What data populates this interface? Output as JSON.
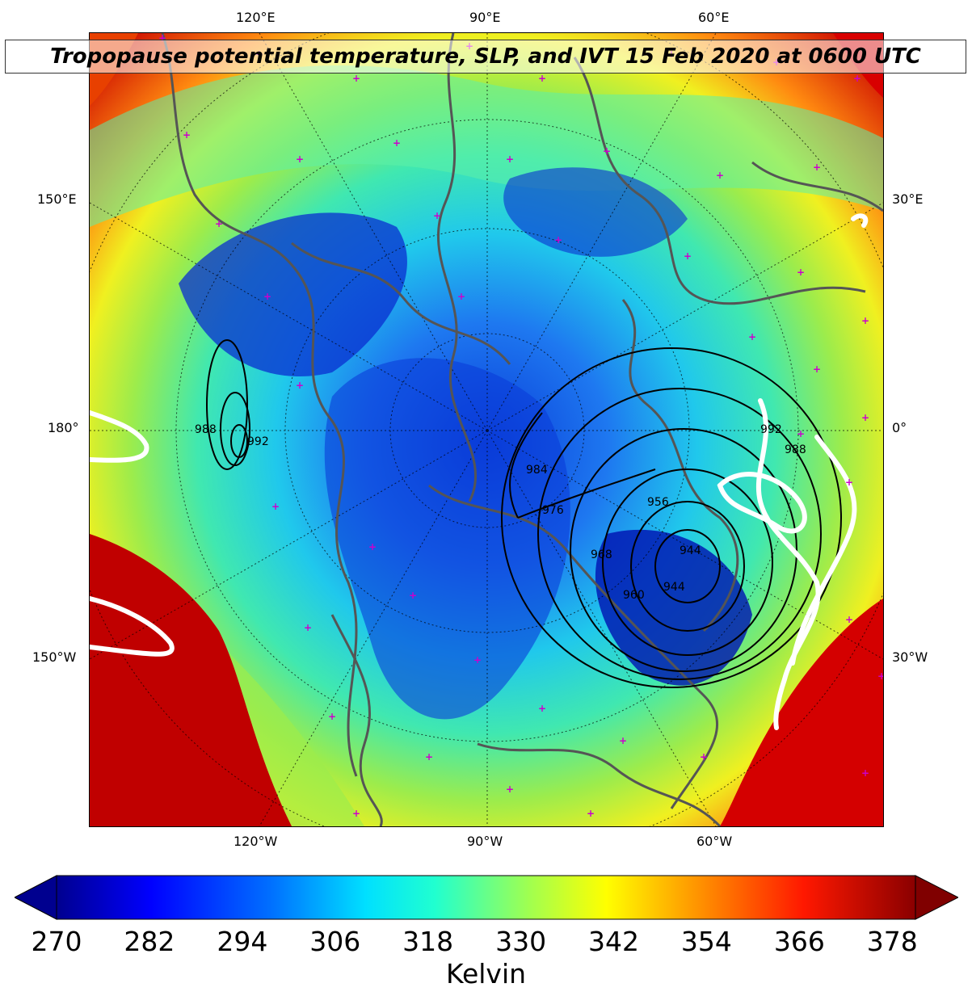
{
  "title": "Tropopause potential temperature, SLP, and IVT 15 Feb 2020 at 0600 UTC",
  "map": {
    "projection": "north-polar-stereographic",
    "fill_variable": "Tropopause potential temperature",
    "contour_variable": "SLP",
    "outline_variable": "IVT",
    "lon_labels_top": [
      "120°E",
      "90°E",
      "60°E"
    ],
    "lon_labels_bottom": [
      "120°W",
      "90°W",
      "60°W"
    ],
    "lat_labels_left": [
      "150°E",
      "180°",
      "150°W"
    ],
    "lat_labels_right": [
      "30°E",
      "0°",
      "30°W"
    ],
    "slp_labels": [
      "988",
      "992",
      "984",
      "976",
      "968",
      "960",
      "956",
      "944",
      "944",
      "992",
      "988"
    ],
    "colors": {
      "coast": "#555555",
      "ivt_outline": "#ffffff",
      "station_marker": "#cc00cc",
      "slp_contour": "#000000"
    }
  },
  "colorbar": {
    "unit_label": "Kelvin",
    "ticks": [
      "270",
      "282",
      "294",
      "306",
      "318",
      "330",
      "342",
      "354",
      "366",
      "378"
    ],
    "min": 270,
    "max": 381,
    "extend": "both",
    "colormap": "jet"
  }
}
